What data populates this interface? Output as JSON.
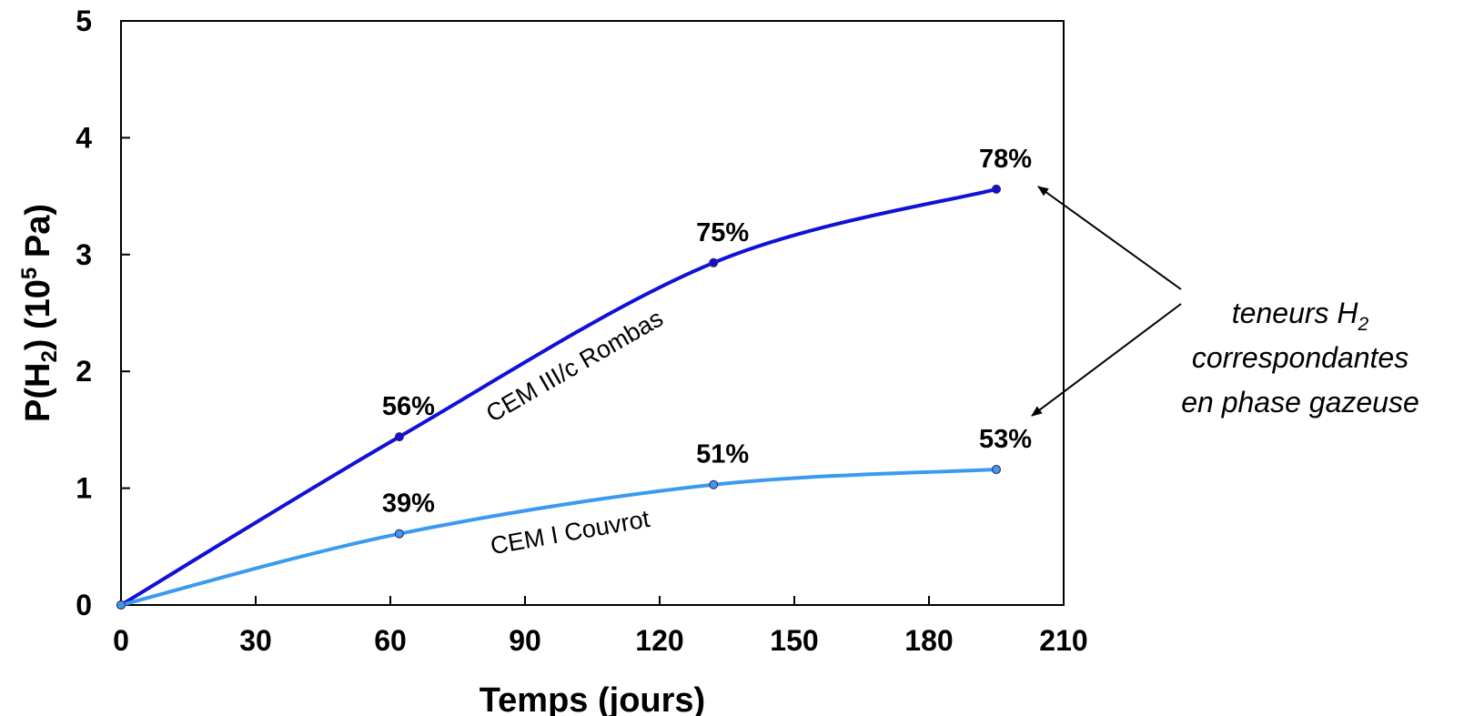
{
  "chart_data": {
    "type": "line",
    "title": "",
    "xlabel": "Temps  (jours)",
    "ylabel": {
      "prefix": "P(H",
      "sub": "2",
      "middle": ")  (10",
      "sup": "5",
      "suffix": " Pa)"
    },
    "xlim": [
      0,
      210
    ],
    "ylim": [
      0,
      5
    ],
    "xticks": [
      "0",
      "30",
      "60",
      "90",
      "120",
      "150",
      "180",
      "210"
    ],
    "yticks": [
      "0",
      "1",
      "2",
      "3",
      "4",
      "5"
    ],
    "grid": false,
    "series": [
      {
        "name": "CEM III/c Rombas",
        "color": "#1010d8",
        "points": [
          {
            "x": 0,
            "y": 0,
            "label": ""
          },
          {
            "x": 62,
            "y": 1.44,
            "label": "56%"
          },
          {
            "x": 132,
            "y": 2.93,
            "label": "75%"
          },
          {
            "x": 195,
            "y": 3.56,
            "label": "78%"
          }
        ]
      },
      {
        "name": "CEM I Couvrot",
        "color": "#3a9af0",
        "points": [
          {
            "x": 0,
            "y": 0,
            "label": ""
          },
          {
            "x": 62,
            "y": 0.61,
            "label": "39%"
          },
          {
            "x": 132,
            "y": 1.03,
            "label": "51%"
          },
          {
            "x": 195,
            "y": 1.16,
            "label": "53%"
          }
        ]
      }
    ],
    "annotation": {
      "line1_prefix": "teneurs H",
      "line1_sub": "2",
      "line2": "correspondantes",
      "line3": "en phase gazeuse"
    }
  }
}
